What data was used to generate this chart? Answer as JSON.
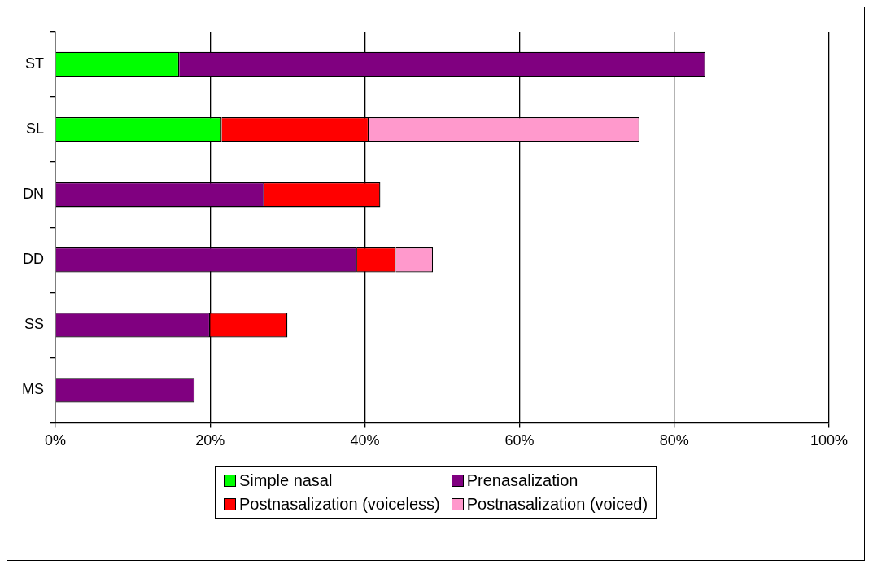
{
  "chart_data": {
    "type": "bar",
    "orientation": "horizontal",
    "stacked": true,
    "categories": [
      "ST",
      "SL",
      "DN",
      "DD",
      "SS",
      "MS"
    ],
    "series": [
      {
        "name": "Simple nasal",
        "color": "#00ff00",
        "values": [
          16,
          21.5,
          0,
          0,
          0,
          0
        ]
      },
      {
        "name": "Prenasalization",
        "color": "#800080",
        "values": [
          68,
          0,
          27,
          39,
          20,
          18
        ]
      },
      {
        "name": "Postnasalization (voiceless)",
        "color": "#ff0000",
        "values": [
          0,
          19,
          15,
          5,
          10,
          0
        ]
      },
      {
        "name": "Postnasalization (voiced)",
        "color": "#ff99cc",
        "values": [
          0,
          35,
          0,
          4.8,
          0,
          0
        ]
      }
    ],
    "xlim": [
      0,
      100
    ],
    "xticks": [
      {
        "value": 0,
        "label": "0%"
      },
      {
        "value": 20,
        "label": "20%"
      },
      {
        "value": 40,
        "label": "40%"
      },
      {
        "value": 60,
        "label": "60%"
      },
      {
        "value": 80,
        "label": "80%"
      },
      {
        "value": 100,
        "label": "100%"
      }
    ],
    "grid": "x",
    "legend": "bottom"
  }
}
